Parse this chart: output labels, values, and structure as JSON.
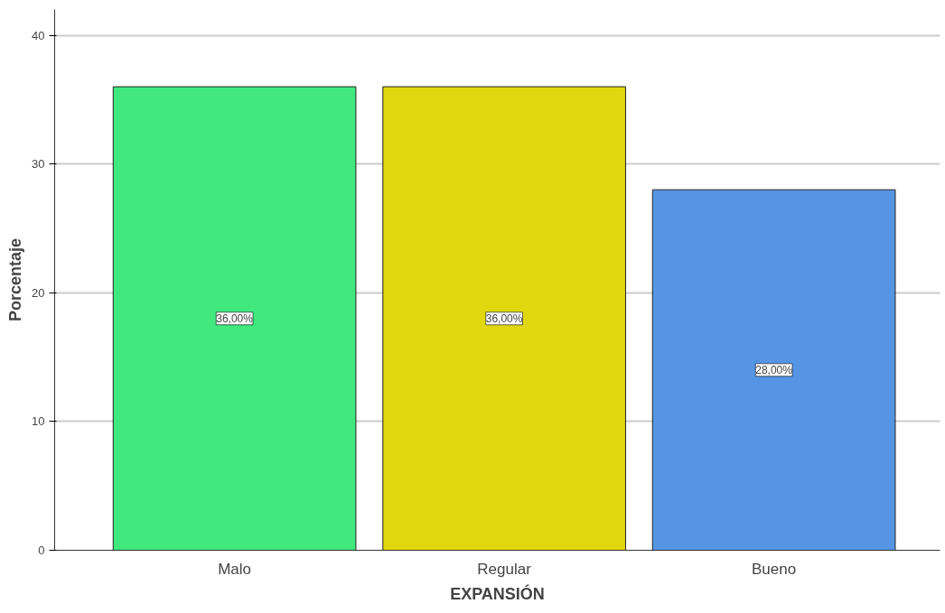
{
  "chart_data": {
    "type": "bar",
    "xlabel": "EXPANSIÓN",
    "ylabel": "Porcentaje",
    "categories": [
      "Malo",
      "Regular",
      "Bueno"
    ],
    "values": [
      36,
      36,
      28
    ],
    "colors": [
      "#40e87e",
      "#e1d70f",
      "#5595e4"
    ],
    "value_labels": [
      "36,00%",
      "36,00%",
      "28,00%"
    ],
    "ylim": [
      0,
      42
    ],
    "yticks": [
      0,
      10,
      20,
      30,
      40
    ],
    "grid": "y"
  }
}
